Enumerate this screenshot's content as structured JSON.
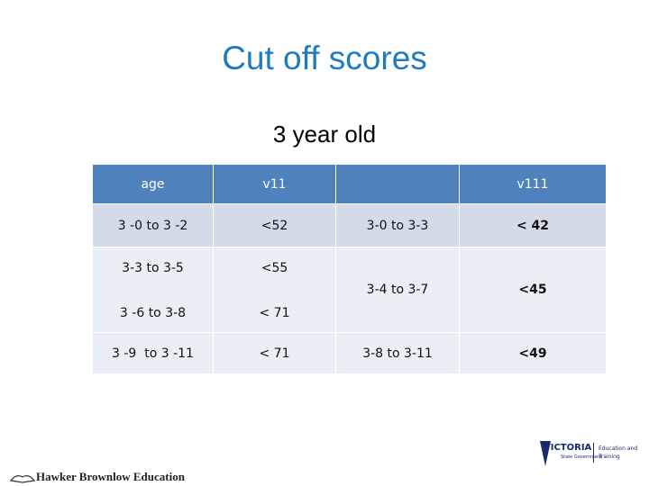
{
  "slide": {
    "title": "Cut off scores",
    "subtitle": "3 year old",
    "table": {
      "header": [
        "age",
        "v11",
        "v111"
      ],
      "rows": [
        [
          "3 -0 to 3 -2",
          "<52",
          "3-0 to 3-3",
          "< 42"
        ],
        [
          "3-3 to 3-5",
          "<55",
          "3-4 to 3-7",
          "<45"
        ],
        [
          "3 -6 to 3-8",
          "< 71"
        ],
        [
          "3 -9  to 3 -11",
          "< 71",
          "3-8 to 3-11",
          "<49"
        ]
      ]
    },
    "footer": {
      "publisher": "Hawker Brownlow Education",
      "government": "VICTORIA",
      "government_sub": "State Government",
      "department": "Education and Training"
    }
  }
}
